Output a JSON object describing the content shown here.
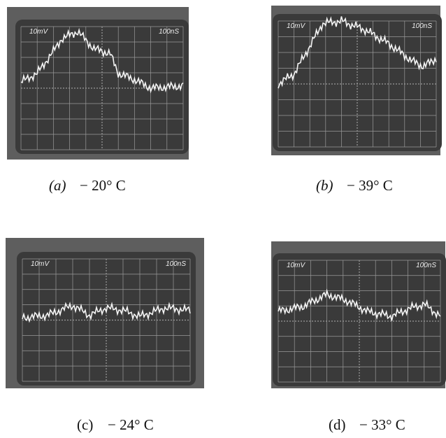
{
  "panels": [
    {
      "screen_labels": [
        "10mV",
        "100nS"
      ],
      "caption": {
        "label": "(a)",
        "temperature": "− 20° C"
      }
    },
    {
      "screen_labels": [
        "10mV",
        "100nS"
      ],
      "caption": {
        "label": "(b)",
        "temperature": "− 39° C"
      }
    },
    {
      "screen_labels": [
        "10mV",
        "100nS"
      ],
      "caption": {
        "label": "(c)",
        "temperature": "− 24° C"
      }
    },
    {
      "screen_labels": [
        "10mV",
        "100nS"
      ],
      "caption": {
        "label": "(d)",
        "temperature": "− 33° C"
      }
    }
  ]
}
